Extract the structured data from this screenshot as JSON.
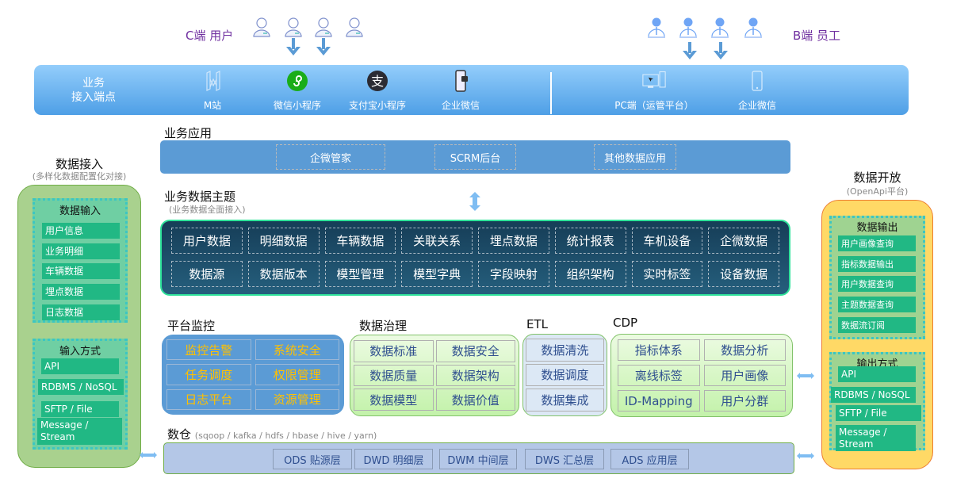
{
  "users": {
    "c_label": "C端 用户",
    "b_label": "B端 员工",
    "c_icon": "user-icon",
    "b_icon": "employee-icon"
  },
  "access": {
    "title": "业务\n接入端点",
    "title_line1": "业务",
    "title_line2": "接入端点",
    "c_items": [
      {
        "label": "M站",
        "icon": "m-site-icon"
      },
      {
        "label": "微信小程序",
        "icon": "wechat-miniprogram-icon"
      },
      {
        "label": "支付宝小程序",
        "icon": "alipay-icon"
      },
      {
        "label": "企业微信",
        "icon": "mobile-app-icon"
      }
    ],
    "b_items": [
      {
        "label": "PC端（运管平台）",
        "icon": "pc-icon"
      },
      {
        "label": "企业微信",
        "icon": "mobile-phone-icon"
      }
    ]
  },
  "biz_app": {
    "title": "业务应用",
    "items": [
      "企微管家",
      "SCRM后台",
      "其他数据应用"
    ]
  },
  "biz_topics": {
    "title": "业务数据主题",
    "subtitle": "(业务数据全面接入)",
    "items": [
      "用户数据",
      "明细数据",
      "车辆数据",
      "关联关系",
      "埋点数据",
      "统计报表",
      "车机设备",
      "企微数据",
      "数据源",
      "数据版本",
      "模型管理",
      "模型字典",
      "字段映射",
      "组织架构",
      "实时标签",
      "设备数据"
    ]
  },
  "monitor": {
    "title": "平台监控",
    "items": [
      "监控告警",
      "系统安全",
      "任务调度",
      "权限管理",
      "日志平台",
      "资源管理"
    ]
  },
  "governance": {
    "title": "数据治理",
    "items": [
      "数据标准",
      "数据安全",
      "数据质量",
      "数据架构",
      "数据模型",
      "数据价值"
    ]
  },
  "etl": {
    "title": "ETL",
    "items": [
      "数据清洗",
      "数据调度",
      "数据集成"
    ]
  },
  "cdp": {
    "title": "CDP",
    "items": [
      "指标体系",
      "数据分析",
      "离线标签",
      "用户画像",
      "ID-Mapping",
      "用户分群"
    ]
  },
  "warehouse": {
    "title": "数仓",
    "subtitle": "(sqoop / kafka / hdfs / hbase  / hive / yarn)",
    "layers": [
      "ODS 贴源层",
      "DWD 明细层",
      "DWM 中间层",
      "DWS 汇总层",
      "ADS 应用层"
    ]
  },
  "ingest": {
    "title": "数据接入",
    "subtitle": "(多样化数据配置化对接)",
    "input_title": "数据输入",
    "inputs": [
      "用户信息",
      "业务明细",
      "车辆数据",
      "埋点数据",
      "日志数据"
    ],
    "method_title": "输入方式",
    "methods": [
      "API",
      "RDBMS / NoSQL",
      "SFTP / File",
      "Message / Stream"
    ]
  },
  "open": {
    "title": "数据开放",
    "subtitle": "(OpenApi平台)",
    "output_title": "数据输出",
    "outputs": [
      "用户画像查询",
      "指标数据输出",
      "用户数据查询",
      "主题数据查询",
      "数据流订阅"
    ],
    "method_title": "输出方式",
    "methods": [
      "API",
      "RDBMS / NoSQL",
      "SFTP / File",
      "Message / Stream"
    ]
  },
  "colors": {
    "accent_blue": "#5b9bd5",
    "dark_panel": "#1d4d68",
    "monitor_text": "#ffc000",
    "ingest_bg": "#a9d18e",
    "open_bg": "#ffd966",
    "item_green": "#21b884"
  }
}
